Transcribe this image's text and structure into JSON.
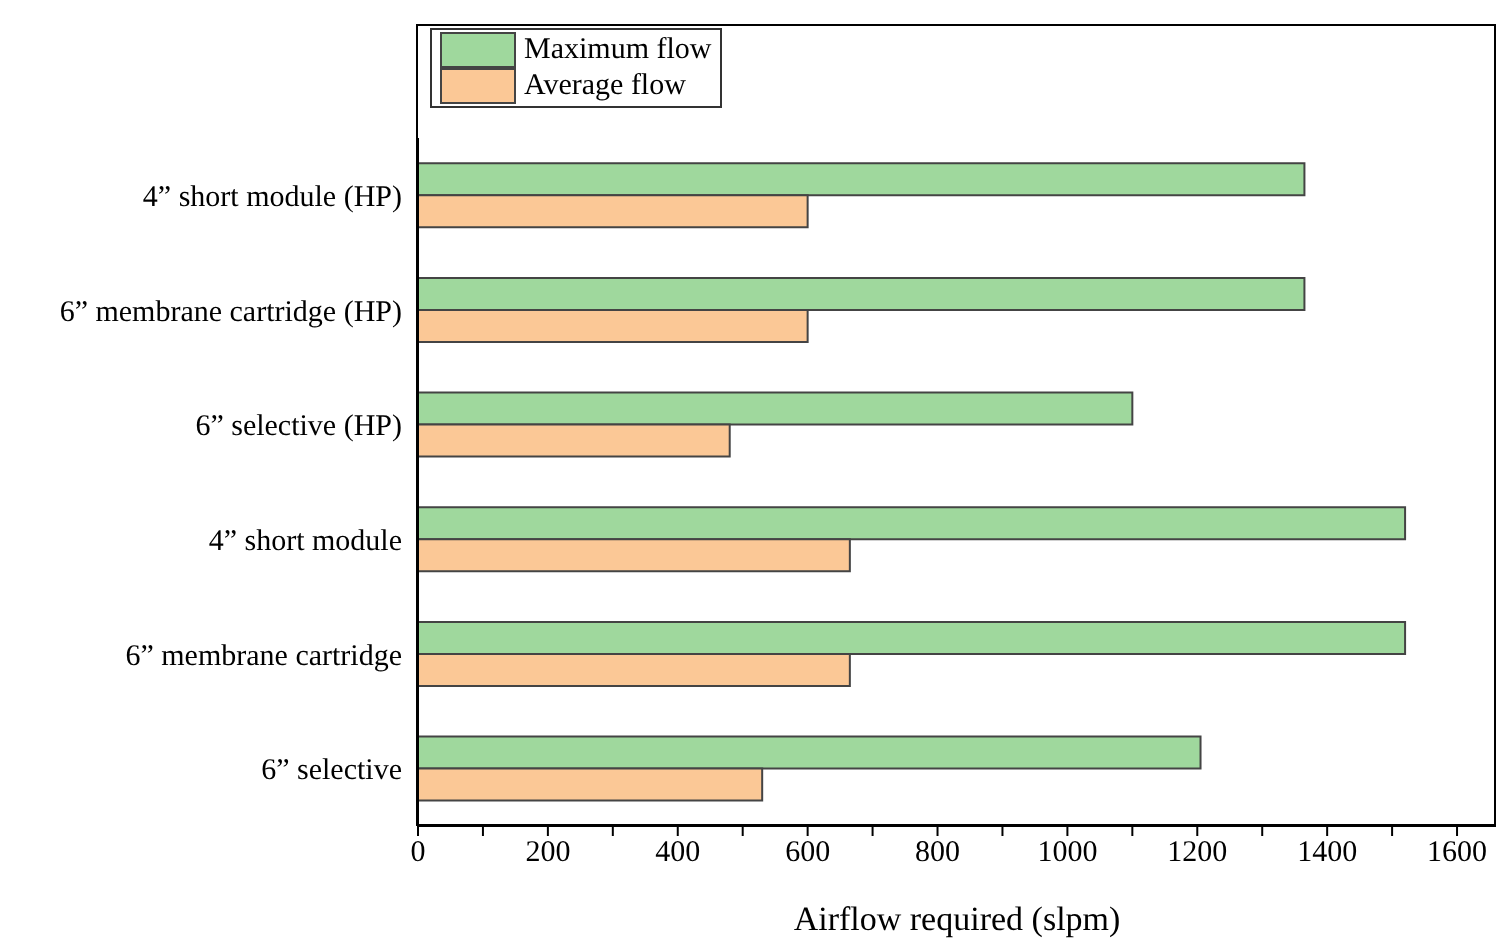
{
  "chart_data": {
    "type": "bar",
    "orientation": "horizontal",
    "xlabel": "Airflow required (slpm)",
    "categories": [
      "4” short module (HP)",
      "6” membrane cartridge (HP)",
      "6” selective (HP)",
      "4” short module",
      "6” membrane cartridge",
      "6” selective"
    ],
    "series": [
      {
        "name": "Maximum flow",
        "color": "#9fd89d",
        "values": [
          1365,
          1365,
          1100,
          1520,
          1520,
          1205
        ]
      },
      {
        "name": "Average flow",
        "color": "#fbc896",
        "values": [
          600,
          600,
          480,
          665,
          665,
          530
        ]
      }
    ],
    "xlim": [
      0,
      1660
    ],
    "xticks": [
      0,
      {
        "value": 100,
        "label": null
      },
      200,
      {
        "value": 300,
        "label": null
      },
      400,
      {
        "value": 500,
        "label": null
      },
      600,
      {
        "value": 700,
        "label": null
      },
      800,
      {
        "value": 900,
        "label": null
      },
      1000,
      {
        "value": 1100,
        "label": null
      },
      1200,
      {
        "value": 1300,
        "label": null
      },
      1400,
      {
        "value": 1500,
        "label": null
      },
      1600
    ],
    "legend": "top left"
  }
}
